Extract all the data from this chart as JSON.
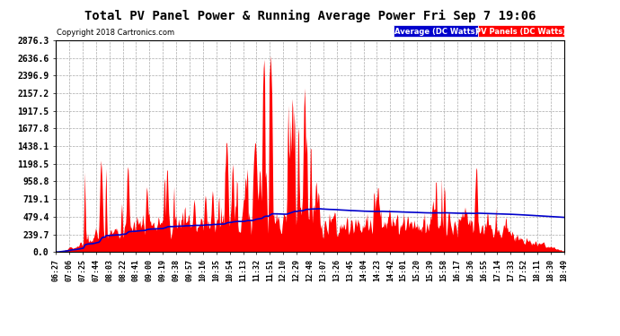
{
  "title": "Total PV Panel Power & Running Average Power Fri Sep 7 19:06",
  "copyright": "Copyright 2018 Cartronics.com",
  "legend_labels": [
    "Average (DC Watts)",
    "PV Panels (DC Watts)"
  ],
  "legend_colors": [
    "#0000cc",
    "#ff0000"
  ],
  "background_color": "#ffffff",
  "plot_bg_color": "#ffffff",
  "grid_color": "#aaaaaa",
  "fill_color": "#ff0000",
  "line_color": "#0000cc",
  "yticks": [
    0.0,
    239.7,
    479.4,
    719.1,
    958.8,
    1198.5,
    1438.1,
    1677.8,
    1917.5,
    2157.2,
    2396.9,
    2636.6,
    2876.3
  ],
  "ymax": 2876.3,
  "x_labels": [
    "06:27",
    "07:06",
    "07:25",
    "07:44",
    "08:03",
    "08:22",
    "08:41",
    "09:00",
    "09:19",
    "09:38",
    "09:57",
    "10:16",
    "10:35",
    "10:54",
    "11:13",
    "11:32",
    "11:51",
    "12:10",
    "12:29",
    "12:48",
    "13:07",
    "13:26",
    "13:45",
    "14:04",
    "14:23",
    "14:42",
    "15:01",
    "15:20",
    "15:39",
    "15:58",
    "16:17",
    "16:36",
    "16:55",
    "17:14",
    "17:33",
    "17:52",
    "18:11",
    "18:30",
    "18:49"
  ]
}
